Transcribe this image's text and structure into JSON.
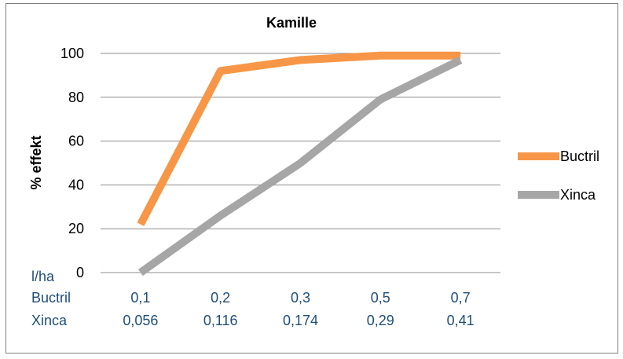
{
  "chart_data": {
    "type": "line",
    "title": "Kamille",
    "ylabel": "% effekt",
    "xlabel": "",
    "ylim": [
      0,
      100
    ],
    "y_ticks": [
      "0",
      "20",
      "40",
      "60",
      "80",
      "100"
    ],
    "x_row_labels": [
      "l/ha",
      "Buctril",
      "Xinca"
    ],
    "categories": [
      {
        "buctril": "0,1",
        "xinca": "0,056"
      },
      {
        "buctril": "0,2",
        "xinca": "0,116"
      },
      {
        "buctril": "0,3",
        "xinca": "0,174"
      },
      {
        "buctril": "0,5",
        "xinca": "0,29"
      },
      {
        "buctril": "0,7",
        "xinca": "0,41"
      }
    ],
    "series": [
      {
        "name": "Buctril",
        "color": "#f79646",
        "values": [
          22,
          92,
          97,
          99,
          99
        ]
      },
      {
        "name": "Xinca",
        "color": "#a6a6a6",
        "values": [
          0,
          26,
          50,
          79,
          97
        ]
      }
    ],
    "grid": true,
    "legend_position": "right"
  }
}
